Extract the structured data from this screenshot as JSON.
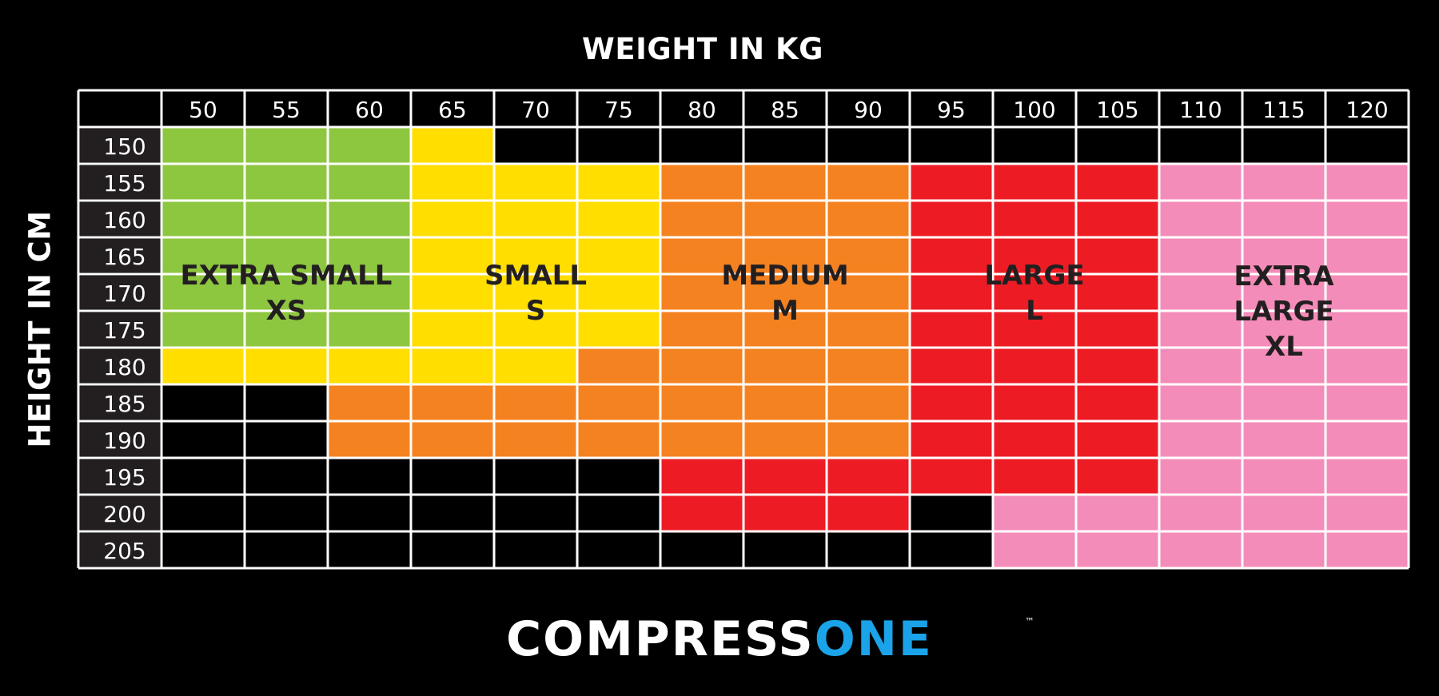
{
  "chart_data": {
    "type": "heatmap",
    "title": "WEIGHT IN KG",
    "xlabel": "WEIGHT IN KG",
    "ylabel": "HEIGHT IN CM",
    "x": [
      50,
      55,
      60,
      65,
      70,
      75,
      80,
      85,
      90,
      95,
      100,
      105,
      110,
      115,
      120
    ],
    "y": [
      150,
      155,
      160,
      165,
      170,
      175,
      180,
      185,
      190,
      195,
      200,
      205
    ],
    "sizes": {
      "XS": {
        "label_lines": [
          "EXTRA SMALL",
          "XS"
        ],
        "color": "#8dc63f"
      },
      "S": {
        "label_lines": [
          "SMALL",
          "S"
        ],
        "color": "#ffde00"
      },
      "M": {
        "label_lines": [
          "MEDIUM",
          "M"
        ],
        "color": "#f58220"
      },
      "L": {
        "label_lines": [
          "LARGE",
          "L"
        ],
        "color": "#ed1c24"
      },
      "XL": {
        "label_lines": [
          "EXTRA",
          "LARGE",
          "XL"
        ],
        "color": "#f48cb9"
      }
    },
    "grid": [
      [
        "XS",
        "XS",
        "XS",
        "S",
        "",
        "",
        "",
        "",
        "",
        "",
        "",
        "",
        "",
        "",
        ""
      ],
      [
        "XS",
        "XS",
        "XS",
        "S",
        "S",
        "S",
        "M",
        "M",
        "M",
        "L",
        "L",
        "L",
        "XL",
        "XL",
        "XL"
      ],
      [
        "XS",
        "XS",
        "XS",
        "S",
        "S",
        "S",
        "M",
        "M",
        "M",
        "L",
        "L",
        "L",
        "XL",
        "XL",
        "XL"
      ],
      [
        "XS",
        "XS",
        "XS",
        "S",
        "S",
        "S",
        "M",
        "M",
        "M",
        "L",
        "L",
        "L",
        "XL",
        "XL",
        "XL"
      ],
      [
        "XS",
        "XS",
        "XS",
        "S",
        "S",
        "S",
        "M",
        "M",
        "M",
        "L",
        "L",
        "L",
        "XL",
        "XL",
        "XL"
      ],
      [
        "XS",
        "XS",
        "XS",
        "S",
        "S",
        "S",
        "M",
        "M",
        "M",
        "L",
        "L",
        "L",
        "XL",
        "XL",
        "XL"
      ],
      [
        "S",
        "S",
        "S",
        "S",
        "S",
        "M",
        "M",
        "M",
        "M",
        "L",
        "L",
        "L",
        "XL",
        "XL",
        "XL"
      ],
      [
        "",
        "",
        "M",
        "M",
        "M",
        "M",
        "M",
        "M",
        "M",
        "L",
        "L",
        "L",
        "XL",
        "XL",
        "XL"
      ],
      [
        "",
        "",
        "M",
        "M",
        "M",
        "M",
        "M",
        "M",
        "M",
        "L",
        "L",
        "L",
        "XL",
        "XL",
        "XL"
      ],
      [
        "",
        "",
        "",
        "",
        "",
        "",
        "L",
        "L",
        "L",
        "L",
        "L",
        "L",
        "XL",
        "XL",
        "XL"
      ],
      [
        "",
        "",
        "",
        "",
        "",
        "",
        "L",
        "L",
        "L",
        "",
        "XL",
        "XL",
        "XL",
        "XL",
        "XL"
      ],
      [
        "",
        "",
        "",
        "",
        "",
        "",
        "",
        "",
        "",
        "",
        "XL",
        "XL",
        "XL",
        "XL",
        "XL"
      ]
    ]
  },
  "brand": {
    "part1": "COMPRESS",
    "part2": "ONE",
    "tm": "™",
    "color1": "#ffffff",
    "color2": "#1aa3e8"
  },
  "colors": {
    "background": "#000000",
    "grid_line": "#ffffff",
    "row_header_bg": "#231f20",
    "label_text": "#231f20"
  }
}
